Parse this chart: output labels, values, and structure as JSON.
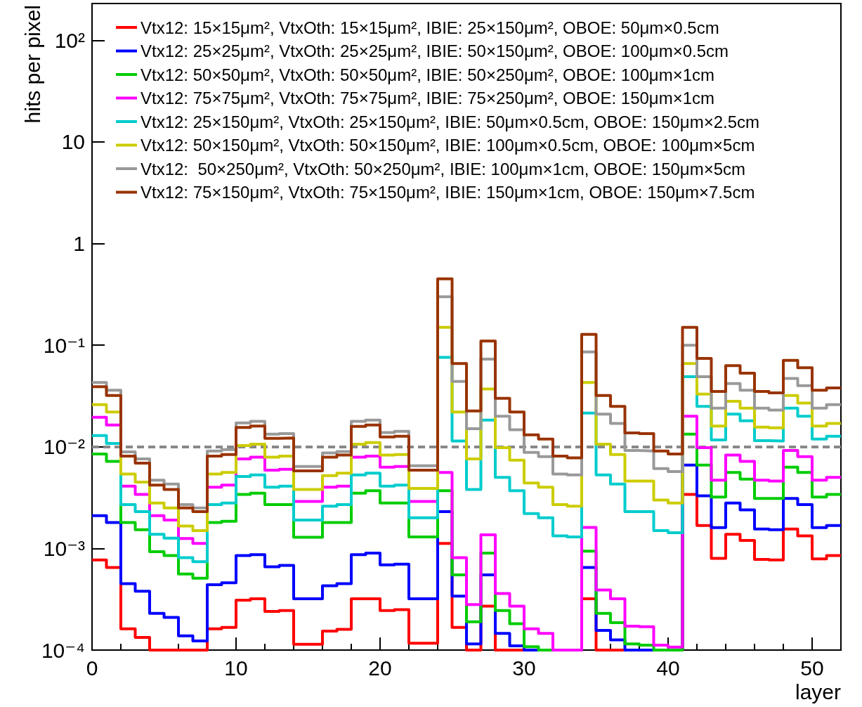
{
  "chart_data": {
    "type": "histogram",
    "xlabel": "layer",
    "ylabel": "hits per pixel",
    "log": "y",
    "grid": false,
    "legend": "top",
    "bins": [
      0,
      1,
      2,
      3,
      4,
      5,
      6,
      7,
      8,
      9,
      10,
      11,
      12,
      13,
      14,
      15,
      16,
      17,
      18,
      19,
      20,
      21,
      22,
      23,
      24,
      25,
      26,
      27,
      28,
      29,
      30,
      31,
      32,
      33,
      34,
      35,
      36,
      37,
      38,
      39,
      40,
      41,
      42,
      43,
      44,
      45,
      46,
      47,
      48,
      49,
      50,
      51,
      52
    ],
    "xlim": [
      0,
      52
    ],
    "xticks": [
      0,
      10,
      20,
      30,
      40,
      50
    ],
    "ylim": [
      0.0001,
      230
    ],
    "yticks": [
      {
        "value": 0.0001,
        "label": "10⁻⁴"
      },
      {
        "value": 0.001,
        "label": "10⁻³"
      },
      {
        "value": 0.01,
        "label": "10⁻²"
      },
      {
        "value": 0.1,
        "label": "10⁻¹"
      },
      1,
      10,
      {
        "value": 100,
        "label": "10²"
      }
    ],
    "ref_lines": [
      {
        "axis": "y",
        "value": 0.01,
        "color": "#888888",
        "line_style": "dashed"
      }
    ],
    "series": [
      {
        "name": "Vtx12: 15×15μm², VtxOth: 15×15μm², IBIE: 25×150μm², OBOE: 50μm×0.5cm",
        "color": "#ff0000",
        "values": [
          0.00077,
          0.00065,
          0.000162,
          0.000133,
          0.0001,
          0.0001,
          0.0001,
          0.0001,
          0.000162,
          0.000167,
          0.00031,
          0.00032,
          0.00024,
          0.000245,
          0.000114,
          0.000114,
          0.000154,
          0.00016,
          0.00032,
          0.00032,
          0.000245,
          0.00025,
          0.000117,
          0.000117,
          0.00112,
          0.000167,
          0.0001,
          0.00027,
          0.0001,
          0.0001,
          0.0001,
          0.0001,
          0.0001,
          0.0001,
          0.00032,
          0.0001,
          0.0001,
          0.0001,
          0.0001,
          0.0001,
          0.0001,
          0.0034,
          0.00168,
          0.0008,
          0.00138,
          0.0012,
          0.00078,
          0.00077,
          0.00155,
          0.00133,
          0.00079,
          0.00085
        ]
      },
      {
        "name": "Vtx12: 25×25μm², VtxOth: 25×25μm², IBIE: 50×150μm², OBOE: 100μm×0.5cm",
        "color": "#0000ff",
        "values": [
          0.0021,
          0.0018,
          0.00045,
          0.00038,
          0.00023,
          0.00021,
          0.000138,
          0.000123,
          0.00044,
          0.00046,
          0.00085,
          0.00087,
          0.00066,
          0.00068,
          0.00032,
          0.00032,
          0.00043,
          0.00045,
          0.00087,
          0.0009,
          0.00069,
          0.0007,
          0.00032,
          0.00032,
          0.0023,
          0.00034,
          0.000115,
          0.00055,
          0.000146,
          0.00011,
          0.0001,
          0.0001,
          0.0001,
          0.0001,
          0.00065,
          0.000156,
          0.000126,
          0.0001,
          0.0001,
          0.0001,
          0.0001,
          0.0066,
          0.0033,
          0.0016,
          0.0028,
          0.0024,
          0.00155,
          0.00153,
          0.0031,
          0.0027,
          0.0016,
          0.00168
        ]
      },
      {
        "name": "Vtx12: 50×50μm², VtxOth: 50×50μm², IBIE: 50×250μm², OBOE: 100μm×1cm",
        "color": "#00cc00",
        "values": [
          0.0085,
          0.0072,
          0.0018,
          0.00153,
          0.00093,
          0.00085,
          0.00056,
          0.00051,
          0.0018,
          0.00185,
          0.0034,
          0.0035,
          0.0027,
          0.0027,
          0.00129,
          0.00129,
          0.0018,
          0.0018,
          0.0035,
          0.0037,
          0.0028,
          0.0028,
          0.0013,
          0.0013,
          0.0037,
          0.00055,
          0.00019,
          0.0009,
          0.000245,
          0.000182,
          0.000108,
          0.0001,
          0.0001,
          0.0001,
          0.00094,
          0.00023,
          0.000186,
          0.000115,
          0.000112,
          0.0001,
          0.0001,
          0.0133,
          0.0066,
          0.0032,
          0.0056,
          0.0048,
          0.0031,
          0.0031,
          0.0063,
          0.0056,
          0.0032,
          0.0034
        ]
      },
      {
        "name": "Vtx12: 75×75μm², VtxOth: 75×75μm², IBIE: 75×250μm², OBOE: 150μm×1cm",
        "color": "#ff00ff",
        "values": [
          0.0195,
          0.0164,
          0.0041,
          0.0034,
          0.0021,
          0.0019,
          0.00125,
          0.00112,
          0.004,
          0.0042,
          0.0076,
          0.0079,
          0.0059,
          0.006,
          0.0029,
          0.0029,
          0.004,
          0.0041,
          0.0079,
          0.0081,
          0.0063,
          0.0064,
          0.0029,
          0.0029,
          0.0056,
          0.00081,
          0.00028,
          0.00136,
          0.00036,
          0.00027,
          0.000162,
          0.000146,
          0.0001,
          0.0001,
          0.00161,
          0.00039,
          0.00032,
          0.000172,
          0.00017,
          0.000112,
          0.000107,
          0.02,
          0.0098,
          0.0047,
          0.0083,
          0.0072,
          0.0047,
          0.0046,
          0.0092,
          0.008,
          0.0047,
          0.005
        ]
      },
      {
        "name": "Vtx12: 25×150μm², VtxOth: 25×150μm², IBIE: 50μm×0.5cm, OBOE: 150μm×2.5cm",
        "color": "#00cccc",
        "values": [
          0.0129,
          0.0108,
          0.0027,
          0.0023,
          0.00138,
          0.00126,
          0.00081,
          0.00074,
          0.0027,
          0.0028,
          0.0051,
          0.0053,
          0.004,
          0.0041,
          0.0019,
          0.0019,
          0.0026,
          0.0027,
          0.0053,
          0.0055,
          0.0041,
          0.0042,
          0.002,
          0.002,
          0.076,
          0.0114,
          0.0038,
          0.0183,
          0.005,
          0.0037,
          0.0022,
          0.002,
          0.00133,
          0.0013,
          0.0215,
          0.0053,
          0.0043,
          0.0023,
          0.0023,
          0.0015,
          0.00143,
          0.049,
          0.025,
          0.0117,
          0.021,
          0.018,
          0.0115,
          0.0114,
          0.024,
          0.02,
          0.0119,
          0.0127
        ]
      },
      {
        "name": "Vtx12: 50×150μm², VtxOth: 50×150μm², IBIE: 100μm×0.5cm, OBOE: 100μm×5cm",
        "color": "#cccc00",
        "values": [
          0.026,
          0.022,
          0.0054,
          0.0045,
          0.0028,
          0.0025,
          0.00166,
          0.0015,
          0.0054,
          0.0056,
          0.0103,
          0.0106,
          0.0079,
          0.0081,
          0.0038,
          0.0038,
          0.0052,
          0.0055,
          0.0106,
          0.011,
          0.0083,
          0.0084,
          0.0039,
          0.0039,
          0.15,
          0.022,
          0.0076,
          0.037,
          0.0098,
          0.0074,
          0.0044,
          0.004,
          0.0027,
          0.0026,
          0.043,
          0.0106,
          0.0084,
          0.0046,
          0.0046,
          0.003,
          0.0028,
          0.066,
          0.033,
          0.016,
          0.028,
          0.024,
          0.0156,
          0.0154,
          0.032,
          0.027,
          0.016,
          0.017
        ]
      },
      {
        "name": "Vtx12:  50×250μm², VtxOth: 50×250μm², IBIE: 100μm×1cm, OBOE: 150μm×5cm",
        "color": "#999999",
        "values": [
          0.043,
          0.036,
          0.0089,
          0.0076,
          0.0047,
          0.0043,
          0.0027,
          0.0025,
          0.0091,
          0.0094,
          0.0172,
          0.0178,
          0.0133,
          0.0135,
          0.0064,
          0.0064,
          0.0087,
          0.009,
          0.0178,
          0.0183,
          0.0138,
          0.0142,
          0.0065,
          0.0065,
          0.3,
          0.044,
          0.0151,
          0.073,
          0.02,
          0.0147,
          0.0088,
          0.008,
          0.0054,
          0.0053,
          0.086,
          0.021,
          0.017,
          0.0092,
          0.0091,
          0.0061,
          0.0057,
          0.1,
          0.049,
          0.024,
          0.042,
          0.036,
          0.024,
          0.023,
          0.047,
          0.04,
          0.024,
          0.026
        ]
      },
      {
        "name": "Vtx12: 75×150μm², VtxOth: 75×150μm², IBIE: 150μm×1cm, OBOE: 150μm×7.5cm",
        "color": "#993300",
        "values": [
          0.039,
          0.032,
          0.0081,
          0.0069,
          0.0042,
          0.0038,
          0.0025,
          0.0023,
          0.0081,
          0.0084,
          0.0155,
          0.016,
          0.0121,
          0.0122,
          0.0058,
          0.0058,
          0.0079,
          0.0083,
          0.0159,
          0.0164,
          0.0125,
          0.0127,
          0.0059,
          0.0059,
          0.45,
          0.066,
          0.0225,
          0.11,
          0.03,
          0.022,
          0.0131,
          0.0119,
          0.0081,
          0.0078,
          0.128,
          0.032,
          0.025,
          0.0137,
          0.0135,
          0.0091,
          0.0085,
          0.15,
          0.074,
          0.035,
          0.063,
          0.053,
          0.035,
          0.034,
          0.071,
          0.06,
          0.036,
          0.038
        ]
      }
    ]
  }
}
